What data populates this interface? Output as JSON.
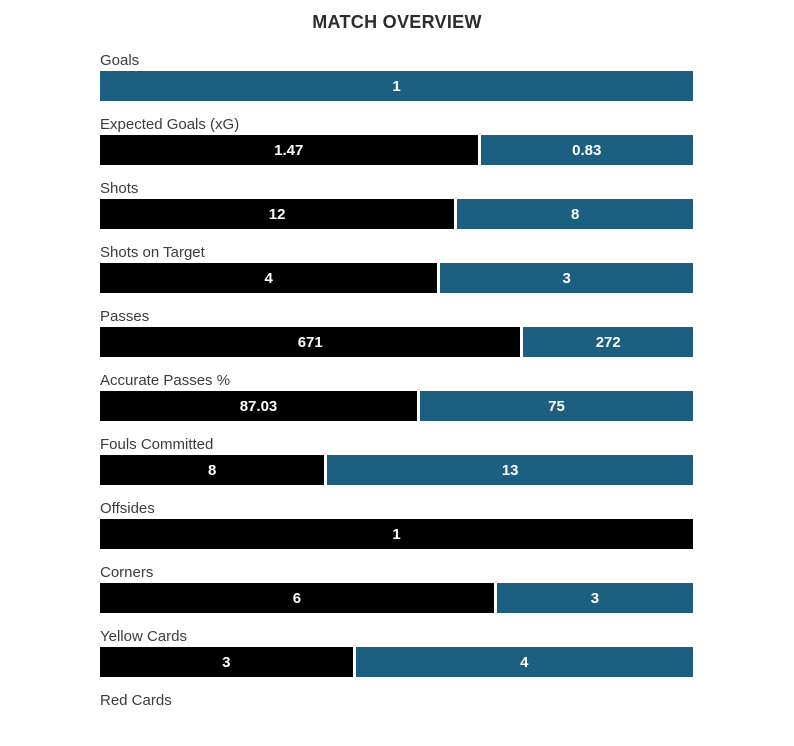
{
  "title": "MATCH OVERVIEW",
  "chart_data": {
    "type": "bar",
    "subtype": "horizontal-stacked-comparison",
    "title": "MATCH OVERVIEW",
    "legend_position": "none",
    "grid": false,
    "colors": {
      "home_bar": "#000000",
      "away_bar": "#1d5f80",
      "value_text": "#ffffff",
      "label_text": "#3c3c3c",
      "title_text": "#2d2d2d",
      "background": "#ffffff"
    },
    "series": [
      {
        "name": "home",
        "color": "#000000"
      },
      {
        "name": "away",
        "color": "#1d5f80"
      }
    ],
    "rows": [
      {
        "label": "Goals",
        "home": 0,
        "away": 1,
        "home_display": "",
        "away_display": "1"
      },
      {
        "label": "Expected Goals (xG)",
        "home": 1.47,
        "away": 0.83,
        "home_display": "1.47",
        "away_display": "0.83"
      },
      {
        "label": "Shots",
        "home": 12,
        "away": 8,
        "home_display": "12",
        "away_display": "8"
      },
      {
        "label": "Shots on Target",
        "home": 4,
        "away": 3,
        "home_display": "4",
        "away_display": "3"
      },
      {
        "label": "Passes",
        "home": 671,
        "away": 272,
        "home_display": "671",
        "away_display": "272"
      },
      {
        "label": "Accurate Passes %",
        "home": 87.03,
        "away": 75,
        "home_display": "87.03",
        "away_display": "75"
      },
      {
        "label": "Fouls Committed",
        "home": 8,
        "away": 13,
        "home_display": "8",
        "away_display": "13"
      },
      {
        "label": "Offsides",
        "home": 1,
        "away": 0,
        "home_display": "1",
        "away_display": ""
      },
      {
        "label": "Corners",
        "home": 6,
        "away": 3,
        "home_display": "6",
        "away_display": "3"
      },
      {
        "label": "Yellow Cards",
        "home": 3,
        "away": 4,
        "home_display": "3",
        "away_display": "4"
      },
      {
        "label": "Red Cards",
        "home": 0,
        "away": 0,
        "home_display": "",
        "away_display": ""
      }
    ]
  }
}
